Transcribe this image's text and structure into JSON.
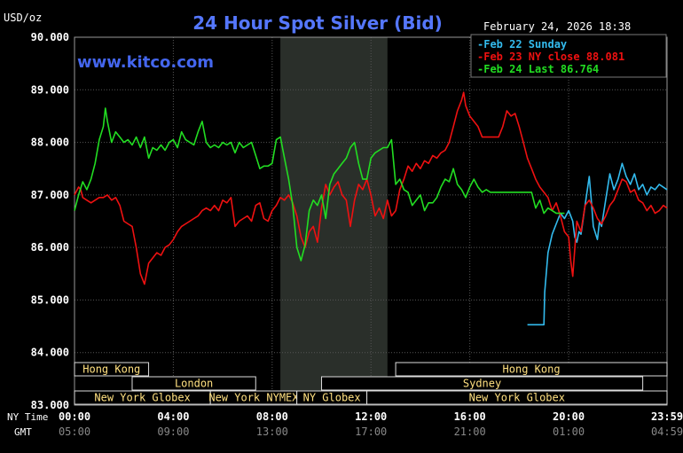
{
  "chart_data": {
    "type": "line",
    "title": "24 Hour Spot Silver (Bid)",
    "watermark": "www.kitco.com",
    "date_label": "February 24, 2026 18:38",
    "unit_label": "USD/oz",
    "ylim": [
      83.0,
      90.0
    ],
    "y_ticks": [
      "90.000",
      "89.000",
      "88.000",
      "87.000",
      "86.000",
      "85.000",
      "84.000",
      "83.000"
    ],
    "y_tick_values": [
      90,
      89,
      88,
      87,
      86,
      85,
      84,
      83
    ],
    "xlim": [
      0,
      1439
    ],
    "ny_time_label": "NY Time",
    "gmt_label": "GMT",
    "x_tick_values": [
      0,
      240,
      480,
      720,
      960,
      1200,
      1439
    ],
    "x_ticks_ny": [
      "00:00",
      "04:00",
      "08:00",
      "12:00",
      "16:00",
      "20:00",
      "23:59"
    ],
    "x_ticks_gmt": [
      "05:00",
      "09:00",
      "13:00",
      "17:00",
      "21:00",
      "01:00",
      "04:59"
    ],
    "grid": true,
    "legend_position": "top-right",
    "highlight_band": [
      500,
      760
    ],
    "colors": {
      "feb22": "#33bbee",
      "feb23": "#ee1111",
      "feb24": "#22dd22",
      "text": "#ffffff",
      "title": "#5577ff",
      "watermark": "#4466ee",
      "sessions": "#ffe080",
      "grid": "#555555"
    },
    "series": [
      {
        "name": "Feb 22 Sunday",
        "legend": "Feb 22 Sunday",
        "color": "#33bbee",
        "x": [
          1100,
          1140,
          1142,
          1150,
          1160,
          1170,
          1180,
          1190,
          1200,
          1210,
          1215,
          1220,
          1225,
          1230,
          1240,
          1250,
          1255,
          1260,
          1270,
          1275,
          1280,
          1290,
          1300,
          1305,
          1310,
          1320,
          1330,
          1340,
          1350,
          1360,
          1370,
          1380,
          1390,
          1400,
          1410,
          1420,
          1439
        ],
        "y": [
          84.53,
          84.53,
          85.15,
          85.9,
          86.25,
          86.45,
          86.65,
          86.55,
          86.7,
          86.5,
          86.2,
          86.1,
          86.3,
          86.25,
          86.8,
          87.35,
          86.9,
          86.4,
          86.15,
          86.5,
          86.4,
          86.9,
          87.4,
          87.25,
          87.1,
          87.3,
          87.6,
          87.35,
          87.2,
          87.4,
          87.1,
          87.2,
          87.0,
          87.15,
          87.1,
          87.2,
          87.1
        ]
      },
      {
        "name": "Feb 23 NY close 88.081",
        "legend": "Feb 23 NY close 88.081",
        "color": "#ee1111",
        "x": [
          0,
          10,
          15,
          20,
          30,
          40,
          50,
          60,
          70,
          80,
          90,
          100,
          110,
          120,
          130,
          140,
          150,
          160,
          170,
          180,
          190,
          200,
          210,
          220,
          230,
          240,
          250,
          260,
          270,
          280,
          290,
          300,
          310,
          320,
          330,
          340,
          350,
          360,
          370,
          380,
          390,
          400,
          410,
          420,
          430,
          440,
          450,
          460,
          470,
          480,
          490,
          500,
          510,
          520,
          530,
          540,
          550,
          560,
          570,
          580,
          590,
          600,
          610,
          620,
          630,
          640,
          650,
          660,
          670,
          680,
          690,
          700,
          710,
          720,
          730,
          740,
          750,
          760,
          770,
          780,
          790,
          800,
          810,
          820,
          830,
          840,
          850,
          860,
          870,
          880,
          890,
          900,
          910,
          920,
          930,
          940,
          945,
          950,
          960,
          970,
          980,
          990,
          1000,
          1010,
          1020,
          1030,
          1040,
          1050,
          1060,
          1070,
          1080,
          1090,
          1100,
          1110,
          1120,
          1130,
          1140,
          1150,
          1160,
          1170,
          1180,
          1190,
          1200,
          1205,
          1210,
          1220,
          1230,
          1240,
          1250,
          1260,
          1270,
          1280,
          1290,
          1300,
          1310,
          1320,
          1330,
          1340,
          1350,
          1360,
          1370,
          1380,
          1390,
          1400,
          1410,
          1420,
          1430,
          1439
        ],
        "y": [
          87.0,
          87.15,
          87.1,
          86.95,
          86.9,
          86.85,
          86.9,
          86.95,
          86.95,
          87.0,
          86.9,
          86.95,
          86.8,
          86.5,
          86.45,
          86.4,
          86.0,
          85.5,
          85.3,
          85.7,
          85.8,
          85.9,
          85.85,
          86.0,
          86.05,
          86.15,
          86.3,
          86.4,
          86.45,
          86.5,
          86.55,
          86.6,
          86.7,
          86.75,
          86.7,
          86.8,
          86.7,
          86.9,
          86.85,
          86.95,
          86.4,
          86.5,
          86.55,
          86.6,
          86.5,
          86.8,
          86.85,
          86.55,
          86.5,
          86.7,
          86.8,
          86.95,
          86.9,
          87.0,
          86.85,
          86.6,
          86.2,
          86.0,
          86.3,
          86.4,
          86.1,
          86.75,
          87.2,
          87.0,
          87.15,
          87.25,
          87.0,
          86.9,
          86.4,
          86.9,
          87.2,
          87.1,
          87.3,
          87.0,
          86.6,
          86.75,
          86.55,
          86.9,
          86.6,
          86.7,
          87.1,
          87.3,
          87.55,
          87.45,
          87.6,
          87.5,
          87.65,
          87.6,
          87.75,
          87.7,
          87.8,
          87.85,
          88.0,
          88.3,
          88.6,
          88.8,
          88.95,
          88.7,
          88.5,
          88.4,
          88.3,
          88.1,
          88.1,
          88.1,
          88.1,
          88.1,
          88.3,
          88.6,
          88.5,
          88.55,
          88.3,
          88.0,
          87.7,
          87.5,
          87.3,
          87.15,
          87.05,
          86.95,
          86.7,
          86.85,
          86.6,
          86.3,
          86.2,
          85.75,
          85.45,
          86.5,
          86.3,
          86.8,
          86.9,
          86.75,
          86.55,
          86.45,
          86.6,
          86.8,
          86.9,
          87.1,
          87.3,
          87.25,
          87.05,
          87.1,
          86.9,
          86.85,
          86.7,
          86.8,
          86.65,
          86.7,
          86.8,
          86.75
        ]
      },
      {
        "name": "Feb 24 Last 86.764",
        "legend": "Feb 24 Last 86.764",
        "color": "#22dd22",
        "x": [
          0,
          10,
          20,
          30,
          40,
          50,
          60,
          70,
          75,
          80,
          90,
          100,
          110,
          120,
          130,
          140,
          150,
          160,
          170,
          180,
          190,
          200,
          210,
          220,
          230,
          240,
          250,
          260,
          270,
          280,
          290,
          300,
          310,
          320,
          330,
          340,
          350,
          360,
          370,
          380,
          390,
          400,
          410,
          420,
          430,
          440,
          450,
          460,
          470,
          480,
          490,
          500,
          510,
          520,
          530,
          540,
          550,
          560,
          570,
          580,
          590,
          600,
          610,
          620,
          630,
          640,
          650,
          660,
          670,
          680,
          690,
          700,
          710,
          720,
          730,
          740,
          750,
          760,
          770,
          780,
          790,
          800,
          810,
          820,
          830,
          840,
          850,
          860,
          870,
          880,
          890,
          900,
          910,
          920,
          930,
          940,
          950,
          960,
          970,
          980,
          990,
          1000,
          1010,
          1020,
          1030,
          1040,
          1050,
          1060,
          1070,
          1080,
          1090,
          1100,
          1110,
          1120,
          1130,
          1140,
          1150,
          1160,
          1170,
          1180,
          1190
        ],
        "y": [
          86.7,
          87.0,
          87.25,
          87.1,
          87.3,
          87.6,
          88.05,
          88.3,
          88.65,
          88.4,
          88.0,
          88.2,
          88.1,
          88.0,
          88.05,
          87.95,
          88.1,
          87.9,
          88.1,
          87.7,
          87.9,
          87.85,
          87.95,
          87.85,
          88.0,
          88.05,
          87.9,
          88.2,
          88.05,
          88.0,
          87.95,
          88.2,
          88.4,
          88.0,
          87.9,
          87.95,
          87.9,
          88.0,
          87.95,
          88.0,
          87.8,
          88.0,
          87.9,
          87.95,
          88.0,
          87.75,
          87.5,
          87.55,
          87.55,
          87.6,
          88.05,
          88.1,
          87.7,
          87.3,
          86.8,
          86.0,
          85.75,
          86.05,
          86.7,
          86.9,
          86.8,
          87.0,
          86.55,
          87.2,
          87.4,
          87.5,
          87.6,
          87.7,
          87.9,
          88.0,
          87.6,
          87.3,
          87.3,
          87.7,
          87.8,
          87.85,
          87.9,
          87.9,
          88.05,
          87.2,
          87.3,
          87.1,
          87.05,
          86.8,
          86.9,
          87.0,
          86.7,
          86.85,
          86.85,
          86.95,
          87.15,
          87.3,
          87.25,
          87.5,
          87.2,
          87.1,
          86.95,
          87.15,
          87.3,
          87.15,
          87.05,
          87.1,
          87.05,
          87.05,
          87.05,
          87.05,
          87.05,
          87.05,
          87.05,
          87.05,
          87.05,
          87.05,
          87.05,
          86.75,
          86.9,
          86.65,
          86.75,
          86.7,
          86.65,
          86.65,
          86.65
        ]
      }
    ],
    "sessions": [
      {
        "label": "Hong Kong",
        "start": 0,
        "end": 180,
        "row": 0
      },
      {
        "label": "Hong Kong",
        "start": 780,
        "end": 1439,
        "row": 0
      },
      {
        "label": "London",
        "start": 140,
        "end": 440,
        "row": 1
      },
      {
        "label": "Sydney",
        "start": 600,
        "end": 1380,
        "row": 1
      },
      {
        "label": "New York Globex",
        "start": 0,
        "end": 330,
        "row": 2
      },
      {
        "label": "New York NYMEX",
        "start": 330,
        "end": 540,
        "row": 2
      },
      {
        "label": "NY Globex",
        "start": 540,
        "end": 710,
        "row": 2
      },
      {
        "label": "New York Globex",
        "start": 710,
        "end": 1439,
        "row": 2
      }
    ]
  }
}
